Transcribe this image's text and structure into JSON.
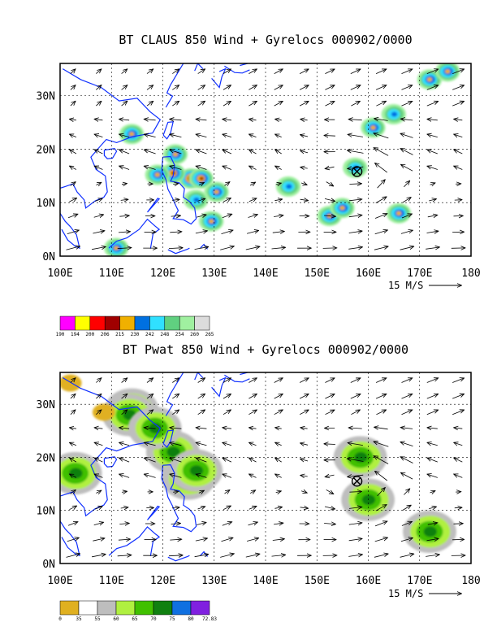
{
  "chart_data": [
    {
      "type": "heatmap",
      "title": "BT CLAUS 850 Wind + Gyrelocs 000902/0000",
      "x_ticks": [
        "100E",
        "110E",
        "120E",
        "130E",
        "140E",
        "150E",
        "160E",
        "170E",
        "180"
      ],
      "y_ticks": [
        "0N",
        "10N",
        "20N",
        "30N"
      ],
      "xlim": [
        100,
        180
      ],
      "ylim": [
        0,
        36
      ],
      "grid": true,
      "vector_reference": "15 M/S",
      "colorbar_labels": [
        "190",
        "194",
        "200",
        "206",
        "215",
        "230",
        "242",
        "248",
        "254",
        "260",
        "265"
      ],
      "colorbar_colors": [
        "#ff00ff",
        "#ffff00",
        "#ff0000",
        "#a00000",
        "#f0b000",
        "#0070e0",
        "#30e0ff",
        "#60d080",
        "#a0f0a0",
        "#dcdcdc"
      ],
      "gyre_location": {
        "lon": 157.8,
        "lat": 15.8
      },
      "features": [
        {
          "lon": 125.5,
          "lat": 14.5,
          "level": 5
        },
        {
          "lon": 122.0,
          "lat": 15.5,
          "level": 4
        },
        {
          "lon": 119.0,
          "lat": 15.2,
          "level": 3
        },
        {
          "lon": 127.5,
          "lat": 14.5,
          "level": 4
        },
        {
          "lon": 130.5,
          "lat": 12.0,
          "level": 3
        },
        {
          "lon": 122.5,
          "lat": 19.0,
          "level": 3
        },
        {
          "lon": 126.5,
          "lat": 10.5,
          "level": 2
        },
        {
          "lon": 129.5,
          "lat": 6.5,
          "level": 3
        },
        {
          "lon": 114.0,
          "lat": 22.8,
          "level": 3
        },
        {
          "lon": 111.0,
          "lat": 1.5,
          "level": 3
        },
        {
          "lon": 144.5,
          "lat": 13.0,
          "level": 2
        },
        {
          "lon": 152.5,
          "lat": 7.5,
          "level": 3
        },
        {
          "lon": 155.0,
          "lat": 9.0,
          "level": 3
        },
        {
          "lon": 161.0,
          "lat": 24.0,
          "level": 3
        },
        {
          "lon": 165.0,
          "lat": 26.5,
          "level": 2
        },
        {
          "lon": 172.0,
          "lat": 33.0,
          "level": 3
        },
        {
          "lon": 175.5,
          "lat": 34.5,
          "level": 3
        },
        {
          "lon": 166.0,
          "lat": 8.0,
          "level": 3
        },
        {
          "lon": 157.5,
          "lat": 16.5,
          "level": 2
        }
      ]
    },
    {
      "type": "heatmap",
      "title": "BT Pwat 850 Wind + Gyrelocs 000902/0000",
      "x_ticks": [
        "100E",
        "110E",
        "120E",
        "130E",
        "140E",
        "150E",
        "160E",
        "170E",
        "180"
      ],
      "y_ticks": [
        "0N",
        "10N",
        "20N",
        "30N"
      ],
      "xlim": [
        100,
        180
      ],
      "ylim": [
        0,
        36
      ],
      "grid": true,
      "vector_reference": "15 M/S",
      "colorbar_labels": [
        "0",
        "35",
        "55",
        "60",
        "65",
        "70",
        "75",
        "80",
        "72.83"
      ],
      "colorbar_colors": [
        "#e0b020",
        "#ffffff",
        "#bebebe",
        "#b0f040",
        "#40c000",
        "#108010",
        "#1070e0",
        "#8020e0"
      ],
      "gyre_location": {
        "lon": 157.8,
        "lat": 15.5
      },
      "features": [
        {
          "lon": 122.0,
          "lat": 21.0,
          "level": 2
        },
        {
          "lon": 125.0,
          "lat": 16.0,
          "level": 3
        },
        {
          "lon": 126.5,
          "lat": 17.5,
          "level": 4
        },
        {
          "lon": 114.0,
          "lat": 29.0,
          "level": 3
        },
        {
          "lon": 113.5,
          "lat": 28.0,
          "level": 4
        },
        {
          "lon": 103.0,
          "lat": 17.0,
          "level": 3
        },
        {
          "lon": 118.5,
          "lat": 25.5,
          "level": 2
        },
        {
          "lon": 160.0,
          "lat": 12.0,
          "level": 2
        },
        {
          "lon": 158.5,
          "lat": 20.0,
          "level": 2
        },
        {
          "lon": 172.0,
          "lat": 6.0,
          "level": 2
        },
        {
          "lon": 102.0,
          "lat": 34.0,
          "level": 0
        },
        {
          "lon": 108.5,
          "lat": 28.5,
          "level": 0
        }
      ]
    }
  ]
}
